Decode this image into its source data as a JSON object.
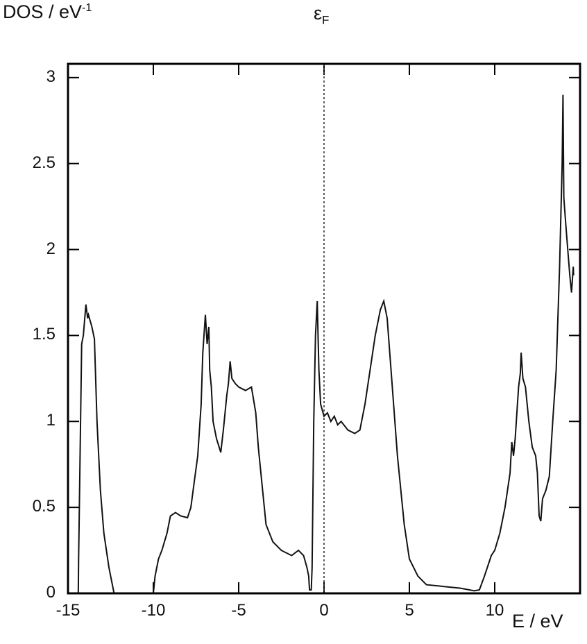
{
  "chart_data": {
    "type": "line",
    "title": "",
    "xlabel": "E / eV",
    "ylabel_main": "DOS / eV",
    "ylabel_sup": "-1",
    "xlim": [
      -15,
      15
    ],
    "ylim": [
      0,
      3.08
    ],
    "xticks": [
      -15,
      -10,
      -5,
      0,
      5,
      10
    ],
    "xtick_labels": [
      "-15",
      "-10",
      "-5",
      "0",
      "5",
      "10"
    ],
    "yticks": [
      0,
      0.5,
      1,
      1.5,
      2,
      2.5,
      3
    ],
    "ytick_labels": [
      "0",
      "0.5",
      "1",
      "1.5",
      "2",
      "2.5",
      "3"
    ],
    "grid": false,
    "line_color": "#111111",
    "annotation": {
      "label_main": "ε",
      "label_sub": "F",
      "x": 0,
      "style": "dotted vertical line"
    },
    "series": [
      {
        "x": [
          -14.4,
          -14.38,
          -14.2,
          -14.1,
          -13.95,
          -13.85,
          -13.8,
          -13.6,
          -13.45,
          -13.3,
          -13.1,
          -12.9,
          -12.6,
          -12.3,
          -10.0,
          -9.9,
          -9.7,
          -9.5,
          -9.2,
          -9.0,
          -8.7,
          -8.4,
          -8.0,
          -7.8,
          -7.6,
          -7.4,
          -7.2,
          -7.1,
          -6.95,
          -6.85,
          -6.75,
          -6.7,
          -6.6,
          -6.5,
          -6.3,
          -6.05,
          -5.9,
          -5.7,
          -5.6,
          -5.5,
          -5.4,
          -5.2,
          -5.0,
          -4.6,
          -4.25,
          -4.0,
          -3.85,
          -3.7,
          -3.4,
          -3.0,
          -2.5,
          -1.9,
          -1.5,
          -1.2,
          -1.0,
          -0.9,
          -0.85,
          -0.75,
          -0.7,
          -0.6,
          -0.5,
          -0.4,
          -0.3,
          -0.2,
          0.0,
          0.2,
          0.4,
          0.6,
          0.8,
          1.0,
          1.4,
          1.8,
          2.1,
          2.4,
          2.7,
          3.0,
          3.3,
          3.5,
          3.7,
          4.0,
          4.3,
          4.7,
          5.0,
          5.5,
          6.0,
          7.0,
          8.0,
          8.8,
          9.1,
          9.4,
          9.8,
          10.0,
          10.3,
          10.6,
          10.9,
          11.0,
          11.1,
          11.2,
          11.4,
          11.5,
          11.55,
          11.65,
          11.8,
          12.0,
          12.2,
          12.4,
          12.5,
          12.6,
          12.7,
          12.8,
          13.0,
          13.2,
          13.4,
          13.6,
          13.8,
          13.95,
          14.0,
          14.05,
          14.2,
          14.4,
          14.5,
          14.6,
          14.62
        ],
        "values": [
          0,
          0.2,
          1.45,
          1.5,
          1.68,
          1.6,
          1.62,
          1.55,
          1.48,
          1.0,
          0.6,
          0.35,
          0.15,
          0,
          0,
          0.1,
          0.2,
          0.25,
          0.35,
          0.45,
          0.47,
          0.45,
          0.44,
          0.5,
          0.65,
          0.8,
          1.1,
          1.4,
          1.62,
          1.45,
          1.55,
          1.3,
          1.2,
          1.0,
          0.9,
          0.82,
          0.95,
          1.15,
          1.22,
          1.35,
          1.25,
          1.22,
          1.2,
          1.18,
          1.2,
          1.05,
          0.85,
          0.7,
          0.4,
          0.3,
          0.25,
          0.22,
          0.25,
          0.22,
          0.15,
          0.1,
          0.02,
          0.02,
          0.15,
          1.0,
          1.5,
          1.7,
          1.3,
          1.1,
          1.03,
          1.05,
          1.0,
          1.03,
          0.98,
          1.0,
          0.95,
          0.93,
          0.95,
          1.1,
          1.3,
          1.5,
          1.65,
          1.7,
          1.6,
          1.2,
          0.8,
          0.4,
          0.2,
          0.1,
          0.05,
          0.04,
          0.03,
          0.015,
          0.02,
          0.1,
          0.22,
          0.25,
          0.35,
          0.5,
          0.7,
          0.88,
          0.8,
          0.9,
          1.2,
          1.28,
          1.4,
          1.25,
          1.2,
          1.0,
          0.85,
          0.8,
          0.7,
          0.45,
          0.42,
          0.55,
          0.6,
          0.68,
          1.0,
          1.3,
          1.9,
          2.5,
          2.9,
          2.3,
          2.1,
          1.85,
          1.75,
          1.9,
          1.85
        ]
      }
    ]
  }
}
